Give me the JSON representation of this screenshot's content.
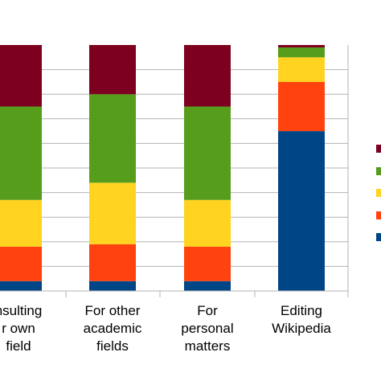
{
  "chart_data": {
    "type": "bar",
    "stacked": true,
    "percent_stacked": true,
    "categories": [
      [
        "nsulting",
        "r own",
        "field"
      ],
      [
        "For other",
        "academic",
        "fields"
      ],
      [
        "For",
        "personal",
        "matters"
      ],
      [
        "Editing",
        "Wikipedia"
      ]
    ],
    "series": [
      {
        "color": "#004586",
        "values": [
          4,
          4,
          4,
          65
        ]
      },
      {
        "color": "#ff420e",
        "values": [
          14,
          15,
          14,
          20
        ]
      },
      {
        "color": "#ffd320",
        "values": [
          19,
          25,
          19,
          10
        ]
      },
      {
        "color": "#579d1c",
        "values": [
          38,
          36,
          38,
          4
        ]
      },
      {
        "color": "#7e0021",
        "values": [
          25,
          20,
          25,
          1
        ]
      }
    ],
    "ylim": [
      0,
      100
    ],
    "grid": true,
    "legend_position": "right"
  }
}
